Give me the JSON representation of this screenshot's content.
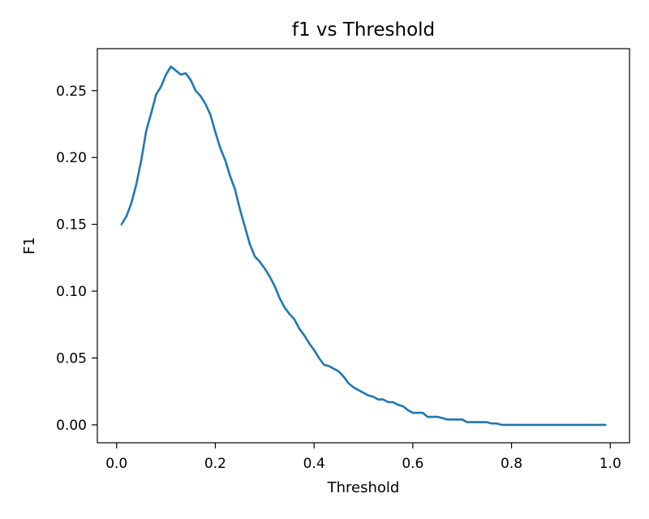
{
  "chart_data": {
    "type": "line",
    "title": "f1 vs Threshold",
    "xlabel": "Threshold",
    "ylabel": "F1",
    "xlim": [
      -0.039,
      1.039
    ],
    "ylim": [
      -0.0134,
      0.2814
    ],
    "grid": false,
    "line_color": "#1f77b4",
    "x_ticks": [
      {
        "value": 0.0,
        "label": "0.0"
      },
      {
        "value": 0.2,
        "label": "0.2"
      },
      {
        "value": 0.4,
        "label": "0.4"
      },
      {
        "value": 0.6,
        "label": "0.6"
      },
      {
        "value": 0.8,
        "label": "0.8"
      },
      {
        "value": 1.0,
        "label": "1.0"
      }
    ],
    "y_ticks": [
      {
        "value": 0.0,
        "label": "0.00"
      },
      {
        "value": 0.05,
        "label": "0.05"
      },
      {
        "value": 0.1,
        "label": "0.10"
      },
      {
        "value": 0.15,
        "label": "0.15"
      },
      {
        "value": 0.2,
        "label": "0.20"
      },
      {
        "value": 0.25,
        "label": "0.25"
      }
    ],
    "series": [
      {
        "name": "F1",
        "x": [
          0.01,
          0.02,
          0.03,
          0.04,
          0.05,
          0.06,
          0.07,
          0.08,
          0.09,
          0.1,
          0.11,
          0.12,
          0.13,
          0.14,
          0.15,
          0.16,
          0.17,
          0.18,
          0.19,
          0.2,
          0.21,
          0.22,
          0.23,
          0.24,
          0.25,
          0.26,
          0.27,
          0.28,
          0.29,
          0.3,
          0.31,
          0.32,
          0.33,
          0.34,
          0.35,
          0.36,
          0.37,
          0.38,
          0.39,
          0.4,
          0.41,
          0.42,
          0.43,
          0.44,
          0.45,
          0.46,
          0.47,
          0.48,
          0.49,
          0.5,
          0.51,
          0.52,
          0.53,
          0.54,
          0.55,
          0.56,
          0.57,
          0.58,
          0.59,
          0.6,
          0.61,
          0.62,
          0.63,
          0.64,
          0.65,
          0.66,
          0.67,
          0.68,
          0.69,
          0.7,
          0.71,
          0.72,
          0.73,
          0.74,
          0.75,
          0.76,
          0.77,
          0.78,
          0.79,
          0.8,
          0.81,
          0.82,
          0.83,
          0.84,
          0.85,
          0.86,
          0.87,
          0.88,
          0.89,
          0.9,
          0.91,
          0.92,
          0.93,
          0.94,
          0.95,
          0.96,
          0.97,
          0.98,
          0.99
        ],
        "values": [
          0.15,
          0.156,
          0.166,
          0.18,
          0.198,
          0.22,
          0.233,
          0.247,
          0.253,
          0.262,
          0.268,
          0.265,
          0.262,
          0.263,
          0.258,
          0.25,
          0.246,
          0.24,
          0.232,
          0.219,
          0.207,
          0.198,
          0.186,
          0.176,
          0.161,
          0.148,
          0.135,
          0.126,
          0.122,
          0.117,
          0.111,
          0.104,
          0.095,
          0.088,
          0.083,
          0.079,
          0.072,
          0.067,
          0.061,
          0.056,
          0.05,
          0.045,
          0.044,
          0.042,
          0.04,
          0.036,
          0.031,
          0.028,
          0.026,
          0.024,
          0.022,
          0.021,
          0.019,
          0.019,
          0.017,
          0.017,
          0.015,
          0.014,
          0.011,
          0.009,
          0.009,
          0.009,
          0.006,
          0.006,
          0.006,
          0.005,
          0.004,
          0.004,
          0.004,
          0.004,
          0.002,
          0.002,
          0.002,
          0.002,
          0.002,
          0.001,
          0.001,
          0.0,
          0.0,
          0.0,
          0.0,
          0.0,
          0.0,
          0.0,
          0.0,
          0.0,
          0.0,
          0.0,
          0.0,
          0.0,
          0.0,
          0.0,
          0.0,
          0.0,
          0.0,
          0.0,
          0.0,
          0.0,
          0.0
        ]
      }
    ]
  }
}
